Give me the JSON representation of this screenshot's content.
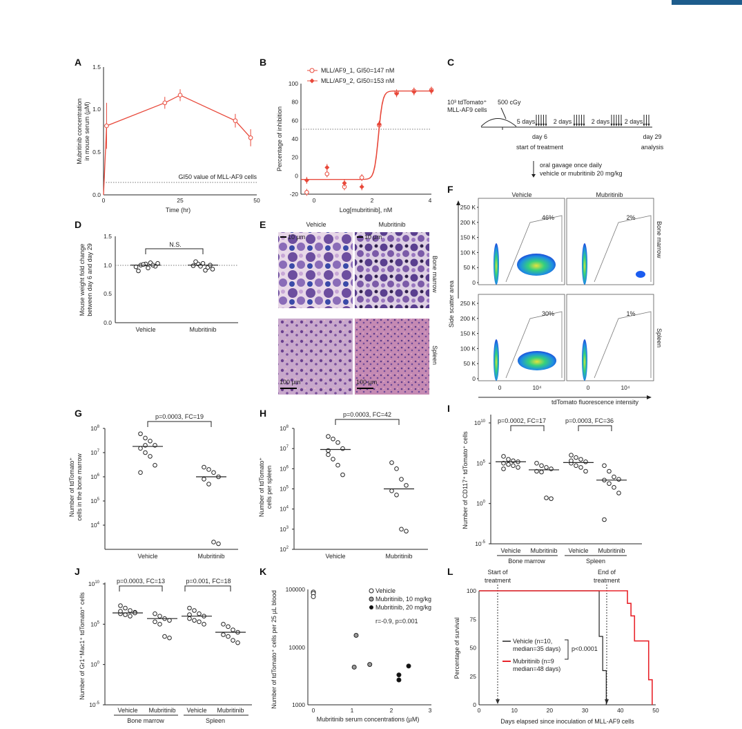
{
  "colors": {
    "red": "#e8483a",
    "dark": "#222222",
    "hist": "#b9a6c7",
    "blue_bar": "#1d5c8c"
  },
  "panels": {
    "A": {
      "letter": "A",
      "ylabel1": "Mubritinib concentration",
      "ylabel2": "in mouse serum (µM)",
      "xlabel": "Time (hr)",
      "gi50_label": "GI50 value of MLL-AF9 cells",
      "yticks": [
        "0.0",
        "0.5",
        "1.0",
        "1.5"
      ],
      "xticks": [
        "0",
        "25",
        "50"
      ],
      "chart_data": {
        "type": "line",
        "x": [
          0,
          1,
          20,
          25,
          43,
          48
        ],
        "y": [
          0.0,
          0.81,
          1.08,
          1.17,
          0.87,
          0.67
        ],
        "err": [
          0,
          0.27,
          0.07,
          0.07,
          0.08,
          0.1
        ],
        "gi50": 0.147,
        "xlim": [
          0,
          50
        ],
        "ylim": [
          0,
          1.5
        ]
      }
    },
    "B": {
      "letter": "B",
      "ylabel": "Percentage of inhibition",
      "xlabel": "Log[mubritinib], nM",
      "legend": [
        "MLL/AF9_1, GI50=147 nM",
        "MLL/AF9_2, GI50=153 nM"
      ],
      "yticks": [
        "-20",
        "0",
        "20",
        "40",
        "60",
        "80",
        "100"
      ],
      "xticks": [
        "0",
        "2",
        "4"
      ],
      "chart_data": {
        "type": "scatter",
        "series": [
          {
            "name": "MLL/AF9_1, GI50=147 nM",
            "x": [
              -0.3,
              0.4,
              1.0,
              1.6,
              2.2,
              2.8,
              3.4,
              4.0
            ],
            "y": [
              -18,
              2,
              -12,
              -2,
              55,
              90,
              92,
              93
            ]
          },
          {
            "name": "MLL/AF9_2, GI50=153 nM",
            "x": [
              -0.3,
              0.4,
              1.0,
              1.6,
              2.2,
              2.8,
              3.4,
              4.0
            ],
            "y": [
              -5,
              9,
              -8,
              -12,
              56,
              89,
              91,
              92
            ]
          }
        ],
        "dotted_level": 50,
        "xlim": [
          -0.5,
          4
        ],
        "ylim": [
          -20,
          100
        ]
      }
    },
    "C": {
      "letter": "C",
      "cells_line1": "10³ tdTomato⁺",
      "cells_line2": "MLL-AF9 cells",
      "dose": "500 cGy",
      "gap1": "5 days",
      "gap2": "2 days",
      "gap3": "2 days",
      "gap4": "2 days",
      "day6": "day 6",
      "start": "start of treatment",
      "day29": "day 29",
      "analysis": "analysis",
      "oral1": "oral gavage once daily",
      "oral2": "vehicle or mubritinib 20 mg/kg"
    },
    "D": {
      "letter": "D",
      "ylabel1": "Mouse weight fold change",
      "ylabel2": "between day 6 and day 29",
      "ns": "N.S.",
      "yticks": [
        "0.0",
        "0.5",
        "1.0",
        "1.5"
      ],
      "xcats": [
        "Vehicle",
        "Mubritinib"
      ],
      "chart_data": {
        "type": "scatter",
        "categories": [
          "Vehicle",
          "Mubritinib"
        ],
        "series": [
          {
            "name": "Vehicle",
            "values": [
              0.97,
              1.0,
              1.02,
              1.04,
              0.98,
              0.9,
              1.01,
              0.95,
              1.0,
              1.03
            ]
          },
          {
            "name": "Mubritinib",
            "values": [
              0.99,
              1.02,
              1.03,
              0.96,
              0.93,
              1.06,
              0.98,
              0.91,
              1.0
            ]
          }
        ],
        "medians": [
          1.0,
          1.0
        ],
        "ylim": [
          0,
          1.5
        ]
      }
    },
    "E": {
      "letter": "E",
      "col1": "Vehicle",
      "col2": "Mubritinib",
      "row1": "Bone marrow",
      "row2": "Spleen",
      "scale1": "10 µm",
      "scale2": "10 µm",
      "scale3": "100 µm",
      "scale4": "100 µm"
    },
    "F": {
      "letter": "F",
      "col1": "Vehicle",
      "col2": "Mubritinib",
      "row1": "Bone marrow",
      "row2": "Spleen",
      "ylabel": "Side scatter area",
      "xlabel": "tdTomato fluorescence intensity",
      "yticks": [
        "0",
        "50 K",
        "100 K",
        "150 K",
        "200 K",
        "250 K"
      ],
      "xticks": [
        "0",
        "10⁴"
      ],
      "gates": [
        "46%",
        "2%",
        "30%",
        "1%"
      ]
    },
    "G": {
      "letter": "G",
      "ylabel1": "Number of tdTomato⁺",
      "ylabel2": "cells in the bone marrow",
      "stat": "p=0.0003, FC=19",
      "xcats": [
        "Vehicle",
        "Mubritinib"
      ],
      "yticks_base": "10",
      "yticks_exp": [
        "4",
        "5",
        "6",
        "7",
        "8"
      ],
      "chart_data": {
        "type": "scatter",
        "yscale": "log",
        "categories": [
          "Vehicle",
          "Mubritinib"
        ],
        "series": [
          {
            "name": "Vehicle",
            "values": [
              60000000,
              40000000,
              30000000,
              20000000,
              15000000,
              10000000,
              7000000,
              3000000,
              1500000,
              20000000
            ]
          },
          {
            "name": "Mubritinib",
            "values": [
              2500000,
              2000000,
              1500000,
              1000000,
              800000,
              500000,
              2000,
              1700
            ]
          }
        ],
        "medians": [
          18000000,
          1000000
        ],
        "ylim": [
          1000,
          100000000
        ]
      }
    },
    "H": {
      "letter": "H",
      "ylabel1": "Number of tdTomato⁺",
      "ylabel2": "cells per spleen",
      "stat": "p=0.0003, FC=42",
      "xcats": [
        "Vehicle",
        "Mubritinib"
      ],
      "yticks_base": "10",
      "yticks_exp": [
        "2",
        "3",
        "4",
        "5",
        "6",
        "7",
        "8"
      ],
      "chart_data": {
        "type": "scatter",
        "yscale": "log",
        "categories": [
          "Vehicle",
          "Mubritinib"
        ],
        "series": [
          {
            "name": "Vehicle",
            "values": [
              40000000,
              30000000,
              20000000,
              10000000,
              5000000,
              3000000,
              1500000,
              500000,
              8000000
            ]
          },
          {
            "name": "Mubritinib",
            "values": [
              2000000,
              1000000,
              300000,
              150000,
              80000,
              50000,
              1000,
              800
            ]
          }
        ],
        "medians": [
          9000000,
          100000
        ],
        "ylim": [
          100,
          100000000
        ]
      }
    },
    "I": {
      "letter": "I",
      "ylabel": "Number of CD117⁺ tdTomato⁺ cells",
      "stat1": "p=0.0002, FC=17",
      "stat2": "p=0.0003, FC=36",
      "xcats": [
        "Vehicle",
        "Mubritinib",
        "Vehicle",
        "Mubritinib"
      ],
      "groups": [
        "Bone marrow",
        "Spleen"
      ],
      "yticks_base": "10",
      "yticks_exp": [
        "-5",
        "0",
        "5",
        "10"
      ],
      "chart_data": {
        "type": "scatter",
        "yscale": "log",
        "categories": [
          "Bone marrow Vehicle",
          "Bone marrow Mubritinib",
          "Spleen Vehicle",
          "Spleen Mubritinib"
        ],
        "series": [
          {
            "name": "Bone marrow Vehicle",
            "values": [
              700000,
              300000,
              200000,
              150000,
              100000,
              70000,
              50000,
              30000,
              20000
            ]
          },
          {
            "name": "Bone marrow Mubritinib",
            "values": [
              100000,
              50000,
              30000,
              20000,
              10000,
              8000,
              5,
              4
            ]
          },
          {
            "name": "Spleen Vehicle",
            "values": [
              1000000,
              500000,
              300000,
              150000,
              100000,
              50000,
              30000,
              10000,
              200000
            ]
          },
          {
            "name": "Spleen Mubritinib",
            "values": [
              50000,
              10000,
              2000,
              1000,
              800,
              300,
              100,
              20,
              0.01
            ]
          }
        ],
        "medians": [
          150000,
          15000,
          120000,
          800
        ],
        "ylim": [
          1e-05,
          10000000000
        ]
      }
    },
    "J": {
      "letter": "J",
      "ylabel": "Number of Gr1⁺Mac1⁺ tdTomato⁺ cells",
      "stat1": "p=0.0003, FC=13",
      "stat2": "p=0.001, FC=18",
      "xcats": [
        "Vehicle",
        "Mubritinib",
        "Vehicle",
        "Mubritinib"
      ],
      "groups": [
        "Bone marrow",
        "Spleen"
      ],
      "yticks_base": "10",
      "yticks_exp": [
        "-5",
        "0",
        "5",
        "10"
      ],
      "chart_data": {
        "type": "scatter",
        "yscale": "log",
        "categories": [
          "Bone marrow Vehicle",
          "Bone marrow Mubritinib",
          "Spleen Vehicle",
          "Spleen Mubritinib"
        ],
        "series": [
          {
            "name": "Bone marrow Vehicle",
            "values": [
              20000000,
              10000000,
              5000000,
              3000000,
              2000000,
              1500000,
              1000000,
              2500000,
              4000000
            ]
          },
          {
            "name": "Bone marrow Mubritinib",
            "values": [
              2000000,
              1000000,
              500000,
              300000,
              200000,
              100000,
              3000,
              2000
            ]
          },
          {
            "name": "Spleen Vehicle",
            "values": [
              10000000,
              5000000,
              2000000,
              1000000,
              500000,
              300000,
              200000,
              100000,
              1500000
            ]
          },
          {
            "name": "Spleen Mubritinib",
            "values": [
              100000,
              50000,
              20000,
              10000,
              5000,
              3000,
              1000,
              500
            ]
          }
        ],
        "medians": [
          2500000,
          500000,
          1000000,
          10000
        ],
        "ylim": [
          1e-05,
          10000000000
        ]
      }
    },
    "K": {
      "letter": "K",
      "ylabel": "Number of tdTomato⁺ cells per 25 µL blood",
      "xlabel": "Mubritinib serum concentrations (µM)",
      "legend": [
        "Vehicle",
        "Mubritinib, 10 mg/kg",
        "Mubritinib, 20 mg/kg"
      ],
      "stat": "r=-0.9, p=0.001",
      "yticks": [
        "1000",
        "10000",
        "100000"
      ],
      "xticks": [
        "0",
        "1",
        "2",
        "3"
      ],
      "chart_data": {
        "type": "scatter",
        "yscale": "log",
        "series": [
          {
            "name": "Vehicle",
            "x": [
              0,
              0,
              0
            ],
            "y": [
              90000,
              85000,
              75000
            ]
          },
          {
            "name": "Mubritinib, 10 mg/kg",
            "x": [
              1.1,
              1.05,
              1.45
            ],
            "y": [
              16000,
              4500,
              5000
            ]
          },
          {
            "name": "Mubritinib, 20 mg/kg",
            "x": [
              2.2,
              2.2,
              2.45
            ],
            "y": [
              3300,
              2700,
              4700
            ]
          }
        ],
        "xlim": [
          0,
          3
        ],
        "ylim": [
          1000,
          100000
        ]
      }
    },
    "L": {
      "letter": "L",
      "start1": "Start of",
      "start2": "treatment",
      "end1": "End of",
      "end2": "treatment",
      "ylabel": "Percentage of survival",
      "xlabel": "Days elapsed since inoculation of MLL-AF9 cells",
      "legend1a": "Vehicle (n=10,",
      "legend1b": "median=35 days)",
      "legend2a": "Mubritinib (n=9",
      "legend2b": "median=48 days)",
      "pval": "p<0.0001",
      "yticks": [
        "0",
        "25",
        "50",
        "75",
        "100"
      ],
      "xticks": [
        "0",
        "10",
        "20",
        "30",
        "40",
        "50"
      ],
      "chart_data": {
        "type": "line",
        "series": [
          {
            "name": "Vehicle",
            "x": [
              0,
              34,
              34,
              35,
              35,
              36,
              36
            ],
            "y": [
              100,
              100,
              60,
              60,
              30,
              30,
              0
            ]
          },
          {
            "name": "Mubritinib",
            "x": [
              0,
              42,
              42,
              43,
              43,
              44,
              44,
              48,
              48,
              49,
              49
            ],
            "y": [
              100,
              100,
              89,
              89,
              78,
              78,
              56,
              56,
              22,
              22,
              0
            ]
          }
        ],
        "xlim": [
          0,
          50
        ],
        "ylim": [
          0,
          100
        ]
      }
    }
  }
}
